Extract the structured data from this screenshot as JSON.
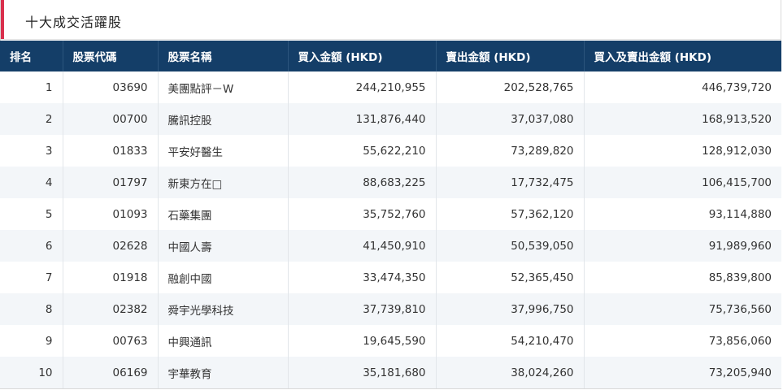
{
  "header": {
    "title": "十大成交活躍股"
  },
  "table": {
    "columns": [
      "排名",
      "股票代碼",
      "股票名稱",
      "買入金額 (HKD)",
      "賣出金額 (HKD)",
      "買入及賣出金額 (HKD)"
    ],
    "rows": [
      [
        "1",
        "03690",
        "美團點評－W",
        "244,210,955",
        "202,528,765",
        "446,739,720"
      ],
      [
        "2",
        "00700",
        "騰訊控股",
        "131,876,440",
        "37,037,080",
        "168,913,520"
      ],
      [
        "3",
        "01833",
        "平安好醫生",
        "55,622,210",
        "73,289,820",
        "128,912,030"
      ],
      [
        "4",
        "01797",
        "新東方在□",
        "88,683,225",
        "17,732,475",
        "106,415,700"
      ],
      [
        "5",
        "01093",
        "石藥集團",
        "35,752,760",
        "57,362,120",
        "93,114,880"
      ],
      [
        "6",
        "02628",
        "中國人壽",
        "41,450,910",
        "50,539,050",
        "91,989,960"
      ],
      [
        "7",
        "01918",
        "融創中國",
        "33,474,350",
        "52,365,450",
        "85,839,800"
      ],
      [
        "8",
        "02382",
        "舜宇光學科技",
        "37,739,810",
        "37,996,750",
        "75,736,560"
      ],
      [
        "9",
        "00763",
        "中興通訊",
        "19,645,590",
        "54,210,470",
        "73,856,060"
      ],
      [
        "10",
        "06169",
        "宇華教育",
        "35,181,680",
        "38,024,260",
        "73,205,940"
      ]
    ]
  }
}
